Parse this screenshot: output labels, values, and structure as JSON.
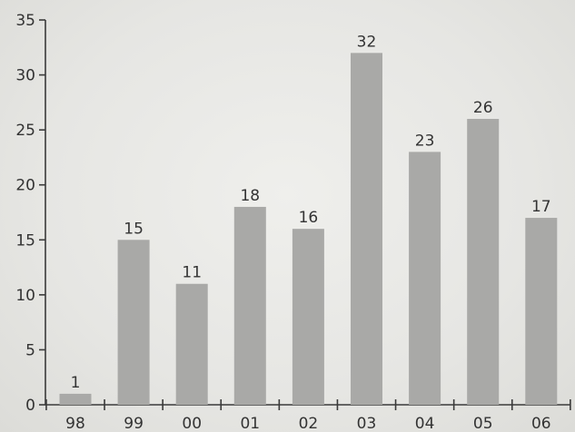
{
  "chart_data": {
    "type": "bar",
    "categories": [
      "98",
      "99",
      "00",
      "01",
      "02",
      "03",
      "04",
      "05",
      "06"
    ],
    "values": [
      1,
      15,
      11,
      18,
      16,
      32,
      23,
      26,
      17
    ],
    "title": "",
    "xlabel": "",
    "ylabel": "",
    "ylim": [
      0,
      35
    ],
    "yticks": [
      0,
      5,
      10,
      15,
      20,
      25,
      30,
      35
    ],
    "grid": false,
    "legend": "none",
    "bar_color": "#a9a9a7",
    "axis_color": "#3a3a3a",
    "background_color": "#e9e9e6"
  }
}
